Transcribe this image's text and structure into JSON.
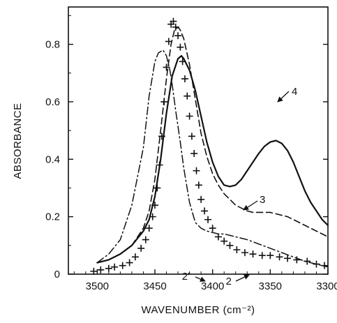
{
  "chart_data": {
    "type": "line",
    "xlabel": "WAVENUMBER (cm⁻²)",
    "ylabel": "ABSORBANCE",
    "xlim": [
      3525,
      3300
    ],
    "ylim": [
      0,
      0.93
    ],
    "x_ticks": [
      3500,
      3450,
      3400,
      3350,
      3300
    ],
    "x_tick_labels": [
      "3500",
      "3450",
      "3400",
      "3350",
      "3300"
    ],
    "y_ticks": [
      0,
      0.2,
      0.4,
      0.6,
      0.8
    ],
    "y_tick_labels": [
      "0",
      "0.2",
      "0.4",
      "0.6",
      "0.8"
    ],
    "grid": false,
    "series": [
      {
        "name": "4",
        "style": "solid",
        "x": [
          3500,
          3490,
          3480,
          3470,
          3460,
          3455,
          3450,
          3445,
          3440,
          3435,
          3430,
          3427,
          3425,
          3420,
          3415,
          3410,
          3405,
          3400,
          3395,
          3390,
          3385,
          3380,
          3375,
          3370,
          3365,
          3360,
          3355,
          3350,
          3345,
          3340,
          3335,
          3330,
          3325,
          3320,
          3315,
          3310,
          3305,
          3300
        ],
        "y": [
          0.04,
          0.05,
          0.07,
          0.1,
          0.15,
          0.19,
          0.27,
          0.4,
          0.56,
          0.69,
          0.75,
          0.76,
          0.75,
          0.71,
          0.64,
          0.55,
          0.46,
          0.39,
          0.34,
          0.31,
          0.305,
          0.31,
          0.33,
          0.36,
          0.39,
          0.42,
          0.445,
          0.46,
          0.465,
          0.455,
          0.43,
          0.39,
          0.34,
          0.29,
          0.25,
          0.22,
          0.19,
          0.17
        ]
      },
      {
        "name": "3",
        "style": "dashed",
        "x": [
          3500,
          3490,
          3480,
          3470,
          3460,
          3455,
          3450,
          3445,
          3440,
          3436,
          3433,
          3430,
          3428,
          3425,
          3420,
          3415,
          3410,
          3405,
          3400,
          3395,
          3390,
          3385,
          3380,
          3375,
          3370,
          3365,
          3360,
          3355,
          3350,
          3345,
          3340,
          3335,
          3330,
          3320,
          3310,
          3300
        ],
        "y": [
          0.04,
          0.05,
          0.07,
          0.1,
          0.16,
          0.22,
          0.33,
          0.5,
          0.68,
          0.8,
          0.85,
          0.86,
          0.85,
          0.82,
          0.73,
          0.61,
          0.49,
          0.41,
          0.35,
          0.31,
          0.28,
          0.26,
          0.24,
          0.23,
          0.22,
          0.215,
          0.215,
          0.215,
          0.215,
          0.21,
          0.205,
          0.2,
          0.19,
          0.17,
          0.15,
          0.13
        ]
      },
      {
        "name": "2'",
        "style": "dash-dot",
        "x": [
          3500,
          3490,
          3480,
          3470,
          3460,
          3455,
          3450,
          3447,
          3443,
          3440,
          3437,
          3435,
          3432,
          3428,
          3425,
          3420,
          3415,
          3410,
          3405,
          3400,
          3395,
          3390,
          3385,
          3380,
          3375,
          3370,
          3360,
          3350,
          3340,
          3330,
          3320,
          3310,
          3300
        ],
        "y": [
          0.04,
          0.07,
          0.12,
          0.24,
          0.44,
          0.62,
          0.74,
          0.77,
          0.78,
          0.76,
          0.71,
          0.66,
          0.57,
          0.46,
          0.37,
          0.25,
          0.18,
          0.16,
          0.15,
          0.145,
          0.14,
          0.14,
          0.135,
          0.13,
          0.125,
          0.12,
          0.105,
          0.09,
          0.075,
          0.06,
          0.045,
          0.035,
          0.025
        ]
      },
      {
        "name": "2",
        "style": "plus-markers",
        "x": [
          3503,
          3497,
          3490,
          3485,
          3478,
          3472,
          3467,
          3462,
          3458,
          3455,
          3452,
          3450,
          3448,
          3446,
          3444,
          3442,
          3440,
          3438,
          3436,
          3434,
          3432,
          3430,
          3428,
          3426,
          3424,
          3422,
          3420,
          3418,
          3416,
          3414,
          3412,
          3410,
          3407,
          3404,
          3400,
          3395,
          3390,
          3385,
          3379,
          3372,
          3365,
          3357,
          3350,
          3342,
          3335,
          3327,
          3318,
          3310,
          3303
        ],
        "y": [
          0.01,
          0.015,
          0.02,
          0.025,
          0.03,
          0.04,
          0.06,
          0.09,
          0.12,
          0.16,
          0.2,
          0.24,
          0.3,
          0.38,
          0.48,
          0.6,
          0.72,
          0.81,
          0.87,
          0.88,
          0.86,
          0.83,
          0.79,
          0.74,
          0.68,
          0.62,
          0.55,
          0.48,
          0.42,
          0.36,
          0.31,
          0.26,
          0.22,
          0.19,
          0.16,
          0.13,
          0.115,
          0.1,
          0.085,
          0.075,
          0.07,
          0.065,
          0.065,
          0.06,
          0.055,
          0.05,
          0.045,
          0.035,
          0.03
        ]
      }
    ],
    "annotations": [
      {
        "text": "4",
        "series": "4"
      },
      {
        "text": "3",
        "series": "3"
      },
      {
        "text": "2'",
        "series": "2'"
      },
      {
        "text": "2",
        "series": "2"
      }
    ]
  }
}
